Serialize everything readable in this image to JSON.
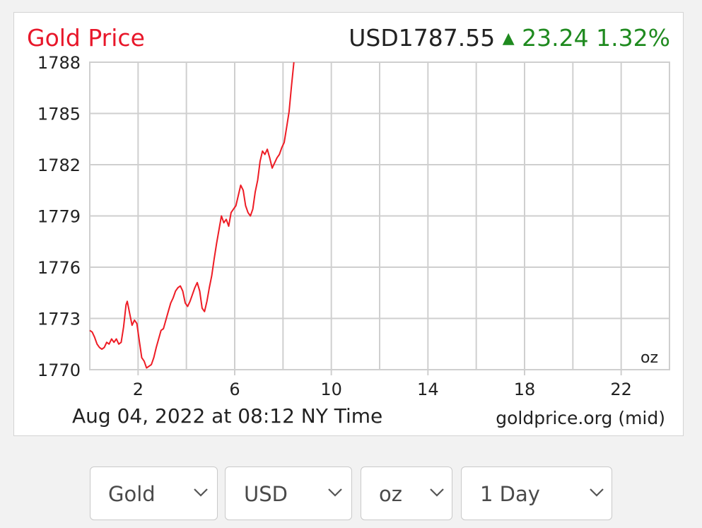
{
  "chart_data": {
    "type": "line",
    "title": "Gold Price",
    "price_label": "USD1787.55",
    "change_value": "23.24",
    "change_percent": "1.32%",
    "footer_left": "Aug 04, 2022 at 08:12 NY Time",
    "footer_right": "goldprice.org (mid)",
    "unit_label": "oz",
    "x_ticks": [
      "2",
      "6",
      "10",
      "14",
      "18",
      "22"
    ],
    "x_tick_values": [
      2,
      6,
      10,
      14,
      18,
      22
    ],
    "y_ticks": [
      "1788",
      "1785",
      "1782",
      "1779",
      "1776",
      "1773",
      "1770"
    ],
    "xlim": [
      0,
      24
    ],
    "ylim": [
      1770,
      1788
    ],
    "grid": true,
    "colors": {
      "title": "#e8172a",
      "line": "#ee1c25",
      "change": "#1f8a1f",
      "grid": "#cfcfcf",
      "price": "#222222"
    },
    "series": [
      {
        "values": [
          [
            0.0,
            1772.3
          ],
          [
            0.1,
            1772.2
          ],
          [
            0.2,
            1771.9
          ],
          [
            0.3,
            1771.5
          ],
          [
            0.4,
            1771.3
          ],
          [
            0.5,
            1771.2
          ],
          [
            0.6,
            1771.3
          ],
          [
            0.7,
            1771.6
          ],
          [
            0.8,
            1771.5
          ],
          [
            0.9,
            1771.8
          ],
          [
            1.0,
            1771.6
          ],
          [
            1.1,
            1771.8
          ],
          [
            1.2,
            1771.5
          ],
          [
            1.3,
            1771.6
          ],
          [
            1.4,
            1772.5
          ],
          [
            1.5,
            1773.8
          ],
          [
            1.55,
            1774.0
          ],
          [
            1.65,
            1773.3
          ],
          [
            1.75,
            1772.6
          ],
          [
            1.85,
            1772.9
          ],
          [
            1.95,
            1772.7
          ],
          [
            2.05,
            1771.7
          ],
          [
            2.15,
            1770.7
          ],
          [
            2.25,
            1770.5
          ],
          [
            2.35,
            1770.1
          ],
          [
            2.45,
            1770.2
          ],
          [
            2.55,
            1770.3
          ],
          [
            2.65,
            1770.7
          ],
          [
            2.75,
            1771.3
          ],
          [
            2.85,
            1771.8
          ],
          [
            2.95,
            1772.3
          ],
          [
            3.05,
            1772.4
          ],
          [
            3.15,
            1772.9
          ],
          [
            3.25,
            1773.4
          ],
          [
            3.35,
            1773.9
          ],
          [
            3.45,
            1774.2
          ],
          [
            3.55,
            1774.6
          ],
          [
            3.65,
            1774.8
          ],
          [
            3.75,
            1774.9
          ],
          [
            3.85,
            1774.6
          ],
          [
            3.95,
            1773.9
          ],
          [
            4.05,
            1773.7
          ],
          [
            4.15,
            1774.0
          ],
          [
            4.25,
            1774.4
          ],
          [
            4.35,
            1774.8
          ],
          [
            4.45,
            1775.1
          ],
          [
            4.55,
            1774.6
          ],
          [
            4.65,
            1773.6
          ],
          [
            4.75,
            1773.4
          ],
          [
            4.85,
            1774.0
          ],
          [
            4.95,
            1774.8
          ],
          [
            5.05,
            1775.5
          ],
          [
            5.15,
            1776.5
          ],
          [
            5.25,
            1777.4
          ],
          [
            5.35,
            1778.2
          ],
          [
            5.45,
            1779.0
          ],
          [
            5.55,
            1778.6
          ],
          [
            5.65,
            1778.8
          ],
          [
            5.75,
            1778.4
          ],
          [
            5.85,
            1779.2
          ],
          [
            5.95,
            1779.4
          ],
          [
            6.05,
            1779.6
          ],
          [
            6.15,
            1780.2
          ],
          [
            6.25,
            1780.8
          ],
          [
            6.35,
            1780.5
          ],
          [
            6.45,
            1779.6
          ],
          [
            6.55,
            1779.2
          ],
          [
            6.65,
            1779.0
          ],
          [
            6.75,
            1779.4
          ],
          [
            6.85,
            1780.4
          ],
          [
            6.95,
            1781.1
          ],
          [
            7.05,
            1782.2
          ],
          [
            7.15,
            1782.8
          ],
          [
            7.25,
            1782.6
          ],
          [
            7.35,
            1782.9
          ],
          [
            7.45,
            1782.4
          ],
          [
            7.55,
            1781.8
          ],
          [
            7.65,
            1782.1
          ],
          [
            7.75,
            1782.4
          ],
          [
            7.85,
            1782.6
          ],
          [
            7.95,
            1783.0
          ],
          [
            8.05,
            1783.3
          ],
          [
            8.15,
            1784.2
          ],
          [
            8.25,
            1785.1
          ],
          [
            8.35,
            1786.6
          ],
          [
            8.45,
            1788.0
          ]
        ]
      }
    ]
  },
  "controls": {
    "metal": "Gold",
    "currency": "USD",
    "weight": "oz",
    "range": "1 Day"
  }
}
